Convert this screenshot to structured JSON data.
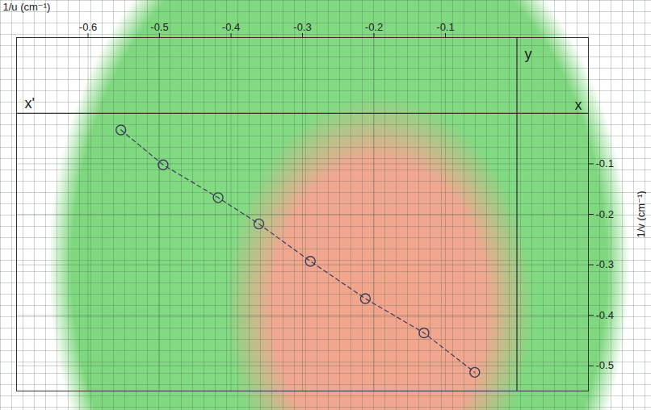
{
  "chart_data": {
    "type": "scatter",
    "x_label": "1/u (cm⁻¹)",
    "y_label": "1/v (cm⁻¹)",
    "annotations": [
      "x",
      "x'",
      "y"
    ],
    "x": [
      -0.554,
      -0.495,
      -0.418,
      -0.361,
      -0.289,
      -0.212,
      -0.13,
      -0.059
    ],
    "values": [
      -0.033,
      -0.102,
      -0.167,
      -0.219,
      -0.293,
      -0.367,
      -0.435,
      -0.513
    ],
    "xlim": [
      -0.7,
      0.1
    ],
    "ylim": [
      -0.55,
      0.15
    ],
    "xticks": [
      -0.6,
      -0.5,
      -0.4,
      -0.3,
      -0.2,
      -0.1
    ],
    "yticks": [
      -0.1,
      -0.2,
      -0.3,
      -0.4,
      -0.5
    ],
    "grid": true,
    "marker": "circle",
    "line_style": "dashed",
    "color": "#3c3c5a"
  }
}
